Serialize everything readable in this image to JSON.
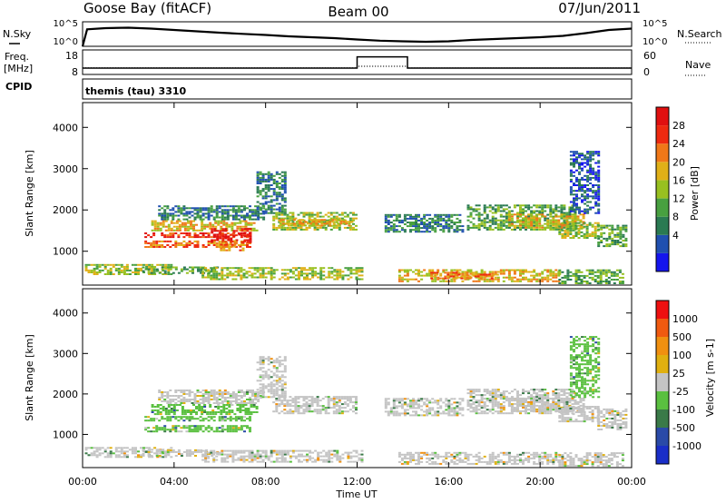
{
  "header": {
    "site": "Goose Bay (fitACF)",
    "beam": "Beam 00",
    "date": "07/Jun/2011"
  },
  "summary": {
    "noise_sky_label": "N.Sky",
    "noise_search_label": "N.Search",
    "noise_ticks": [
      "10^5",
      "10^0"
    ],
    "freq_label": "Freq.",
    "freq_unit": "[MHz]",
    "freq_ticks": [
      "18",
      "8"
    ],
    "nave_label": "Nave",
    "nave_ticks": [
      "60",
      "0"
    ],
    "cpid_label": "CPID",
    "cpid_value": "themis (tau) 3310"
  },
  "colors": {
    "power_scale": [
      "#1515ee",
      "#2050b0",
      "#2a7a52",
      "#48a040",
      "#98c020",
      "#e0b018",
      "#f07818",
      "#ee2a10",
      "#e01010"
    ],
    "velocity_scale": [
      "#1a2ec8",
      "#2a4aa8",
      "#3a7a48",
      "#5ac040",
      "#c4c4c4",
      "#e0b010",
      "#f09010",
      "#f05a10",
      "#ee1010"
    ],
    "ground_scatter": "#c4c4c4"
  },
  "chart_data": [
    {
      "type": "heatmap",
      "name": "power",
      "ylabel": "Slant Range [km]",
      "yticks": [
        1000,
        2000,
        3000,
        4000
      ],
      "ylim": [
        180,
        4600
      ],
      "xlim": [
        0,
        24
      ],
      "xticks": [
        "00:00",
        "04:00",
        "08:00",
        "12:00",
        "16:00",
        "20:00",
        "00:00"
      ],
      "colorbar": {
        "label": "Power [dB]",
        "ticks": [
          "28",
          "24",
          "20",
          "16",
          "12",
          "8",
          "4"
        ],
        "range": [
          0,
          32
        ]
      },
      "regions": [
        {
          "t": [
            0.1,
            3.9
          ],
          "r": [
            420,
            660
          ],
          "level": 4
        },
        {
          "t": [
            2.6,
            5.9
          ],
          "r": [
            450,
            620
          ],
          "level": 3
        },
        {
          "t": [
            2.7,
            7.3
          ],
          "r": [
            1320,
            1420
          ],
          "level": 7
        },
        {
          "t": [
            2.7,
            7.3
          ],
          "r": [
            1080,
            1220
          ],
          "level": 6
        },
        {
          "t": [
            3.0,
            7.6
          ],
          "r": [
            1480,
            1750
          ],
          "level": 5
        },
        {
          "t": [
            3.3,
            7.9
          ],
          "r": [
            1750,
            2100
          ],
          "level": 2
        },
        {
          "t": [
            5.6,
            7.3
          ],
          "r": [
            1200,
            1550
          ],
          "level": 8
        },
        {
          "t": [
            6.0,
            7.0
          ],
          "r": [
            1000,
            1250
          ],
          "level": 6
        },
        {
          "t": [
            7.6,
            8.9
          ],
          "r": [
            1900,
            2900
          ],
          "level": 2
        },
        {
          "t": [
            8.3,
            11.9
          ],
          "r": [
            1500,
            1920
          ],
          "level": 4
        },
        {
          "t": [
            8.6,
            11.8
          ],
          "r": [
            1600,
            1780
          ],
          "level": 5
        },
        {
          "t": [
            5.2,
            12.2
          ],
          "r": [
            300,
            600
          ],
          "level": 4
        },
        {
          "t": [
            13.8,
            20.8
          ],
          "r": [
            250,
            560
          ],
          "level": 5
        },
        {
          "t": [
            15.2,
            18.2
          ],
          "r": [
            320,
            480
          ],
          "level": 6
        },
        {
          "t": [
            13.2,
            16.6
          ],
          "r": [
            1450,
            1900
          ],
          "level": 2
        },
        {
          "t": [
            16.8,
            21.6
          ],
          "r": [
            1500,
            2100
          ],
          "level": 3
        },
        {
          "t": [
            18.6,
            21.9
          ],
          "r": [
            1550,
            1880
          ],
          "level": 5
        },
        {
          "t": [
            20.8,
            22.6
          ],
          "r": [
            1300,
            1700
          ],
          "level": 4
        },
        {
          "t": [
            21.3,
            22.6
          ],
          "r": [
            1900,
            3400
          ],
          "level": 1
        },
        {
          "t": [
            20.8,
            23.6
          ],
          "r": [
            200,
            520
          ],
          "level": 3
        },
        {
          "t": [
            22.5,
            23.8
          ],
          "r": [
            1100,
            1600
          ],
          "level": 3
        }
      ]
    },
    {
      "type": "heatmap",
      "name": "velocity",
      "ylabel": "Slant Range [km]",
      "yticks": [
        1000,
        2000,
        3000,
        4000
      ],
      "ylim": [
        180,
        4600
      ],
      "xlim": [
        0,
        24
      ],
      "xticks": [
        "00:00",
        "04:00",
        "08:00",
        "12:00",
        "16:00",
        "20:00",
        "00:00"
      ],
      "xlabel": "Time UT",
      "colorbar": {
        "label": "Velocity [m s-1]",
        "ticks": [
          "1000",
          "500",
          "100",
          "25",
          "-25",
          "-100",
          "-500",
          "-1000"
        ],
        "range": [
          -1200,
          1200
        ]
      },
      "regions": [
        {
          "t": [
            0.1,
            3.9
          ],
          "r": [
            420,
            660
          ],
          "level": 4
        },
        {
          "t": [
            2.6,
            5.9
          ],
          "r": [
            450,
            620
          ],
          "level": 4
        },
        {
          "t": [
            2.7,
            7.3
          ],
          "r": [
            1320,
            1420
          ],
          "level": 3
        },
        {
          "t": [
            2.7,
            7.3
          ],
          "r": [
            1050,
            1220
          ],
          "level": 3
        },
        {
          "t": [
            3.0,
            7.6
          ],
          "r": [
            1480,
            1750
          ],
          "level": 3
        },
        {
          "t": [
            3.3,
            7.9
          ],
          "r": [
            1750,
            2100
          ],
          "level": 4
        },
        {
          "t": [
            7.6,
            8.9
          ],
          "r": [
            1900,
            2900
          ],
          "level": 4
        },
        {
          "t": [
            8.3,
            11.9
          ],
          "r": [
            1500,
            1920
          ],
          "level": 4
        },
        {
          "t": [
            5.2,
            12.2
          ],
          "r": [
            300,
            600
          ],
          "level": 4
        },
        {
          "t": [
            13.8,
            20.8
          ],
          "r": [
            250,
            560
          ],
          "level": 4
        },
        {
          "t": [
            13.2,
            16.6
          ],
          "r": [
            1450,
            1900
          ],
          "level": 4
        },
        {
          "t": [
            16.8,
            21.6
          ],
          "r": [
            1500,
            2100
          ],
          "level": 4
        },
        {
          "t": [
            18.6,
            21.9
          ],
          "r": [
            1550,
            1880
          ],
          "level": 4
        },
        {
          "t": [
            20.8,
            22.6
          ],
          "r": [
            1300,
            1700
          ],
          "level": 4
        },
        {
          "t": [
            21.3,
            22.6
          ],
          "r": [
            1900,
            3400
          ],
          "level": 3
        },
        {
          "t": [
            20.8,
            23.6
          ],
          "r": [
            200,
            520
          ],
          "level": 4
        },
        {
          "t": [
            22.5,
            23.8
          ],
          "r": [
            1100,
            1600
          ],
          "level": 4
        }
      ]
    },
    {
      "type": "line",
      "name": "noise",
      "xlim": [
        0,
        24
      ],
      "series": [
        {
          "name": "N.Sky",
          "x": [
            0,
            0.2,
            1,
            2,
            3,
            4,
            5,
            6,
            7,
            8,
            9,
            10,
            11,
            12,
            13,
            14,
            15,
            16,
            17,
            18,
            19,
            20,
            21,
            22,
            23,
            24
          ],
          "y": [
            0.0,
            0.75,
            0.8,
            0.82,
            0.78,
            0.72,
            0.66,
            0.6,
            0.55,
            0.5,
            0.44,
            0.4,
            0.36,
            0.3,
            0.25,
            0.22,
            0.2,
            0.22,
            0.28,
            0.32,
            0.36,
            0.4,
            0.46,
            0.58,
            0.72,
            0.78
          ]
        }
      ]
    },
    {
      "type": "line",
      "name": "frequency",
      "xlim": [
        0,
        24
      ],
      "series": [
        {
          "name": "Freq.",
          "x": [
            0,
            12,
            12,
            14.2,
            14.2,
            24
          ],
          "y": [
            10.6,
            10.6,
            15.2,
            15.2,
            10.6,
            10.6
          ]
        },
        {
          "name": "Nave",
          "x": [
            0,
            12,
            12,
            14.2,
            14.2,
            24
          ],
          "y": [
            16,
            16,
            20,
            20,
            16,
            16
          ]
        }
      ]
    }
  ]
}
